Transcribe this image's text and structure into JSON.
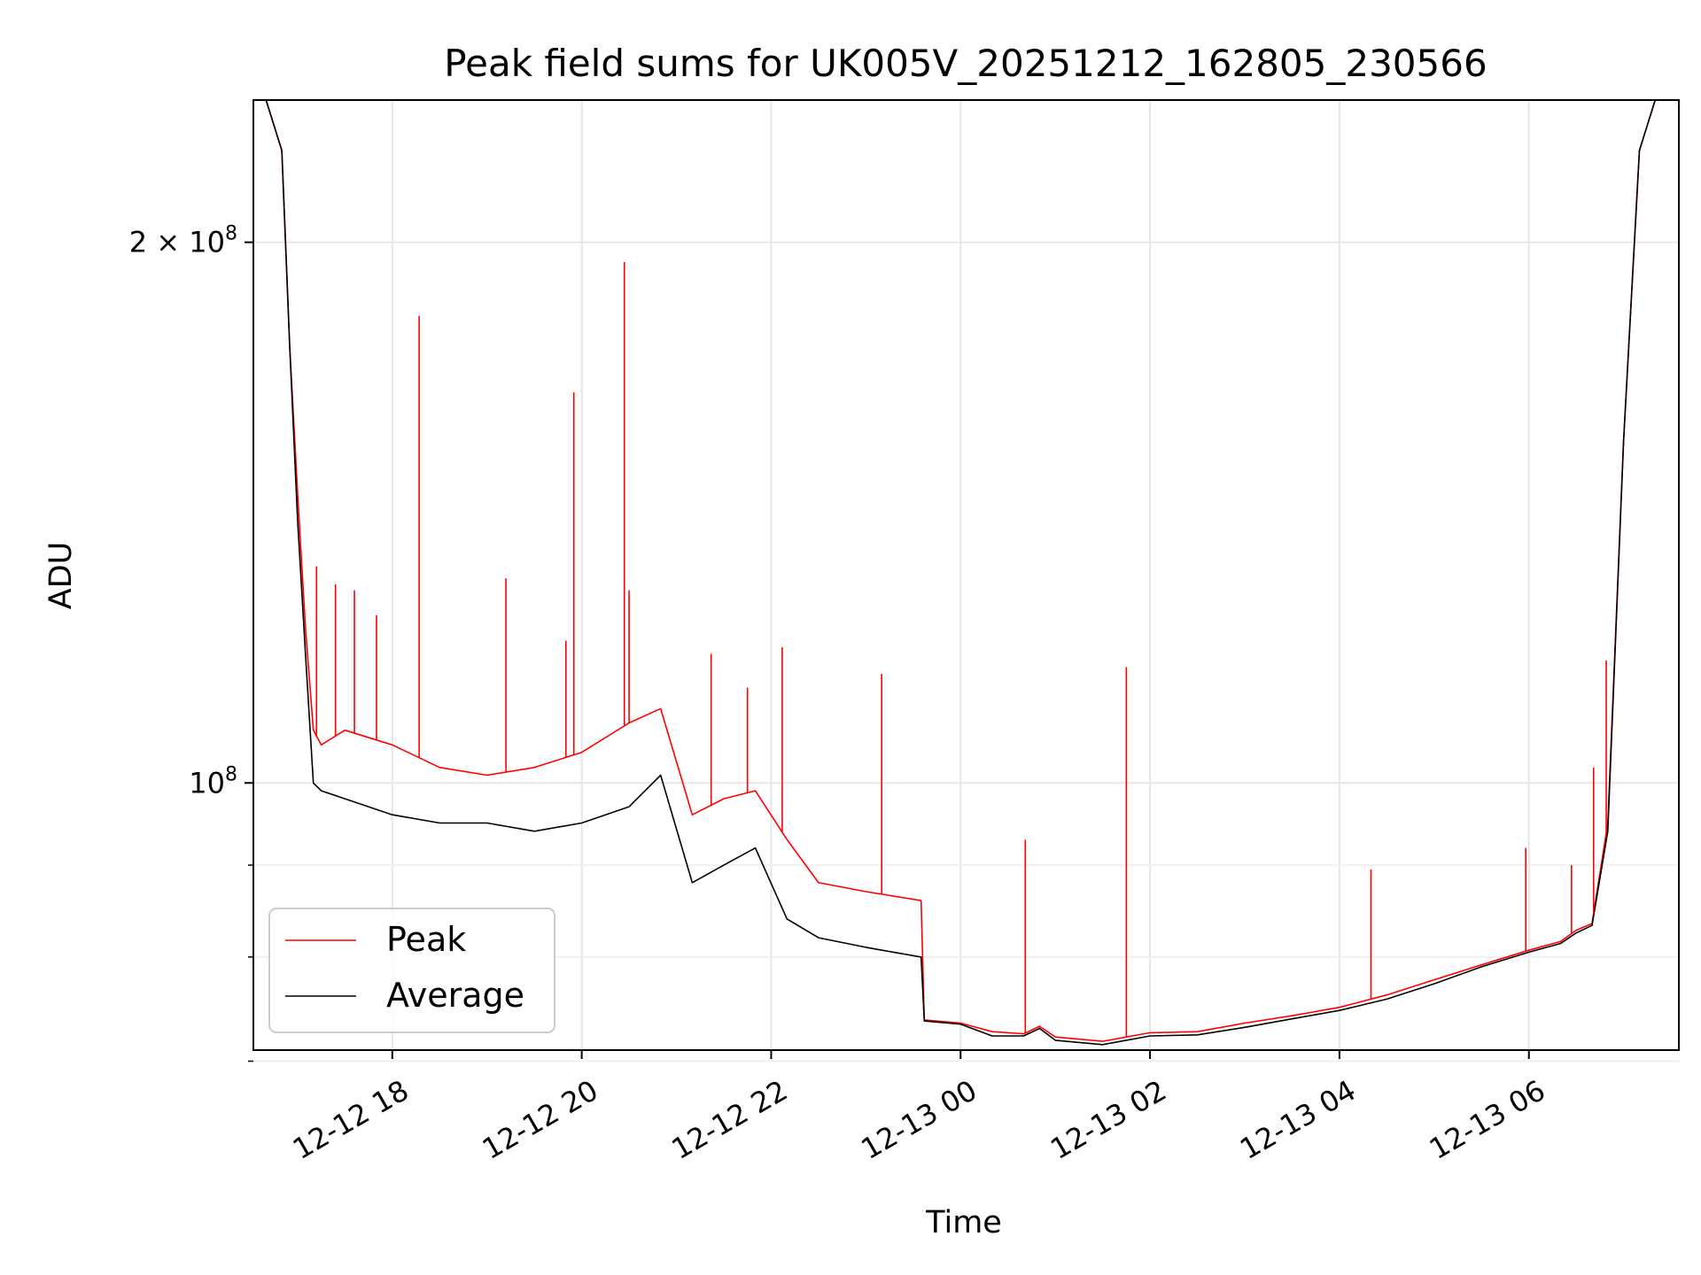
{
  "chart_data": {
    "type": "line",
    "title": "Peak field sums for UK005V_20251212_162805_230566",
    "xlabel": "Time",
    "ylabel": "ADU",
    "yscale": "log",
    "xlim": [
      "2025-12-12 16:32",
      "2025-12-13 07:35"
    ],
    "ylim": [
      71000000,
      240000000
    ],
    "grid": true,
    "legend_position": "lower-left",
    "x_ticks": [
      {
        "value": "2025-12-12 18:00",
        "label": "12-12 18"
      },
      {
        "value": "2025-12-12 20:00",
        "label": "12-12 20"
      },
      {
        "value": "2025-12-12 22:00",
        "label": "12-12 22"
      },
      {
        "value": "2025-12-13 00:00",
        "label": "12-13 00"
      },
      {
        "value": "2025-12-13 02:00",
        "label": "12-13 02"
      },
      {
        "value": "2025-12-13 04:00",
        "label": "12-13 04"
      },
      {
        "value": "2025-12-13 06:00",
        "label": "12-13 06"
      }
    ],
    "y_ticks_major": [
      {
        "value": 100000000,
        "label_base": "10",
        "label_exp": "8"
      },
      {
        "value": 200000000,
        "label_base": "2 × 10",
        "label_exp": "8"
      }
    ],
    "y_ticks_minor": [
      70000000,
      80000000,
      90000000
    ],
    "series": [
      {
        "name": "Peak",
        "color": "#ff0000",
        "x": [
          "2025-12-12 16:40",
          "2025-12-12 16:50",
          "2025-12-12 16:55",
          "2025-12-12 17:00",
          "2025-12-12 17:05",
          "2025-12-12 17:10",
          "2025-12-12 17:15",
          "2025-12-12 17:30",
          "2025-12-12 18:00",
          "2025-12-12 18:30",
          "2025-12-12 19:00",
          "2025-12-12 19:30",
          "2025-12-12 20:00",
          "2025-12-12 20:30",
          "2025-12-12 20:50",
          "2025-12-12 21:10",
          "2025-12-12 21:30",
          "2025-12-12 21:50",
          "2025-12-12 22:10",
          "2025-12-12 22:30",
          "2025-12-12 23:00",
          "2025-12-12 23:35",
          "2025-12-12 23:37",
          "2025-12-13 00:00",
          "2025-12-13 00:20",
          "2025-12-13 00:40",
          "2025-12-13 00:50",
          "2025-12-13 01:00",
          "2025-12-13 01:30",
          "2025-12-13 02:00",
          "2025-12-13 02:30",
          "2025-12-13 03:00",
          "2025-12-13 03:30",
          "2025-12-13 04:00",
          "2025-12-13 04:30",
          "2025-12-13 05:00",
          "2025-12-13 05:30",
          "2025-12-13 06:00",
          "2025-12-13 06:20",
          "2025-12-13 06:30",
          "2025-12-13 06:40",
          "2025-12-13 06:50",
          "2025-12-13 07:00",
          "2025-12-13 07:10",
          "2025-12-13 07:20"
        ],
        "y": [
          240000000,
          225000000,
          175000000,
          145000000,
          122000000,
          107000000,
          105000000,
          107000000,
          105000000,
          102000000,
          101000000,
          102000000,
          104000000,
          108000000,
          110000000,
          96000000,
          98000000,
          99000000,
          93000000,
          88000000,
          87000000,
          86000000,
          73800000,
          73500000,
          72700000,
          72500000,
          73200000,
          72200000,
          71800000,
          72600000,
          72700000,
          73500000,
          74200000,
          75000000,
          76200000,
          77700000,
          79200000,
          80700000,
          81600000,
          82800000,
          83500000,
          95000000,
          155000000,
          225000000,
          240000000
        ]
      },
      {
        "name": "Average",
        "color": "#000000",
        "x": [
          "2025-12-12 16:40",
          "2025-12-12 16:50",
          "2025-12-12 16:55",
          "2025-12-12 17:00",
          "2025-12-12 17:05",
          "2025-12-12 17:10",
          "2025-12-12 17:15",
          "2025-12-12 17:30",
          "2025-12-12 18:00",
          "2025-12-12 18:30",
          "2025-12-12 19:00",
          "2025-12-12 19:30",
          "2025-12-12 20:00",
          "2025-12-12 20:30",
          "2025-12-12 20:50",
          "2025-12-12 21:10",
          "2025-12-12 21:30",
          "2025-12-12 21:50",
          "2025-12-12 22:10",
          "2025-12-12 22:30",
          "2025-12-12 23:00",
          "2025-12-12 23:35",
          "2025-12-12 23:37",
          "2025-12-13 00:00",
          "2025-12-13 00:20",
          "2025-12-13 00:40",
          "2025-12-13 00:50",
          "2025-12-13 01:00",
          "2025-12-13 01:30",
          "2025-12-13 02:00",
          "2025-12-13 02:30",
          "2025-12-13 03:00",
          "2025-12-13 03:30",
          "2025-12-13 04:00",
          "2025-12-13 04:30",
          "2025-12-13 05:00",
          "2025-12-13 05:30",
          "2025-12-13 06:00",
          "2025-12-13 06:20",
          "2025-12-13 06:30",
          "2025-12-13 06:40",
          "2025-12-13 06:50",
          "2025-12-13 07:00",
          "2025-12-13 07:10",
          "2025-12-13 07:20"
        ],
        "y": [
          240000000,
          225000000,
          175000000,
          140000000,
          118000000,
          100000000,
          99000000,
          98000000,
          96000000,
          95000000,
          95000000,
          94000000,
          95000000,
          97000000,
          101000000,
          88000000,
          90000000,
          92000000,
          84000000,
          82000000,
          81000000,
          80000000,
          73700000,
          73400000,
          72300000,
          72300000,
          73000000,
          71900000,
          71500000,
          72300000,
          72400000,
          73100000,
          73900000,
          74700000,
          75800000,
          77300000,
          79000000,
          80500000,
          81400000,
          82500000,
          83300000,
          94000000,
          155000000,
          225000000,
          240000000
        ]
      }
    ],
    "spikes": [
      {
        "series": "Peak",
        "x": "2025-12-12 17:12",
        "y": 132000000
      },
      {
        "series": "Peak",
        "x": "2025-12-12 17:24",
        "y": 129000000
      },
      {
        "series": "Peak",
        "x": "2025-12-12 17:36",
        "y": 128000000
      },
      {
        "series": "Peak",
        "x": "2025-12-12 17:50",
        "y": 124000000
      },
      {
        "series": "Peak",
        "x": "2025-12-12 18:17",
        "y": 182000000
      },
      {
        "series": "Peak",
        "x": "2025-12-12 19:12",
        "y": 130000000
      },
      {
        "series": "Peak",
        "x": "2025-12-12 19:50",
        "y": 120000000
      },
      {
        "series": "Peak",
        "x": "2025-12-12 19:55",
        "y": 165000000
      },
      {
        "series": "Peak",
        "x": "2025-12-12 20:27",
        "y": 195000000
      },
      {
        "series": "Peak",
        "x": "2025-12-12 20:30",
        "y": 128000000
      },
      {
        "series": "Peak",
        "x": "2025-12-12 21:22",
        "y": 118000000
      },
      {
        "series": "Peak",
        "x": "2025-12-12 21:45",
        "y": 113000000
      },
      {
        "series": "Peak",
        "x": "2025-12-12 22:07",
        "y": 119000000
      },
      {
        "series": "Peak",
        "x": "2025-12-12 23:10",
        "y": 115000000
      },
      {
        "series": "Peak",
        "x": "2025-12-13 00:41",
        "y": 93000000
      },
      {
        "series": "Peak",
        "x": "2025-12-13 01:45",
        "y": 116000000
      },
      {
        "series": "Peak",
        "x": "2025-12-13 04:20",
        "y": 89500000
      },
      {
        "series": "Peak",
        "x": "2025-12-13 05:58",
        "y": 92000000
      },
      {
        "series": "Peak",
        "x": "2025-12-13 06:27",
        "y": 90000000
      },
      {
        "series": "Peak",
        "x": "2025-12-13 06:41",
        "y": 102000000
      },
      {
        "series": "Peak",
        "x": "2025-12-13 06:49",
        "y": 117000000
      }
    ]
  }
}
